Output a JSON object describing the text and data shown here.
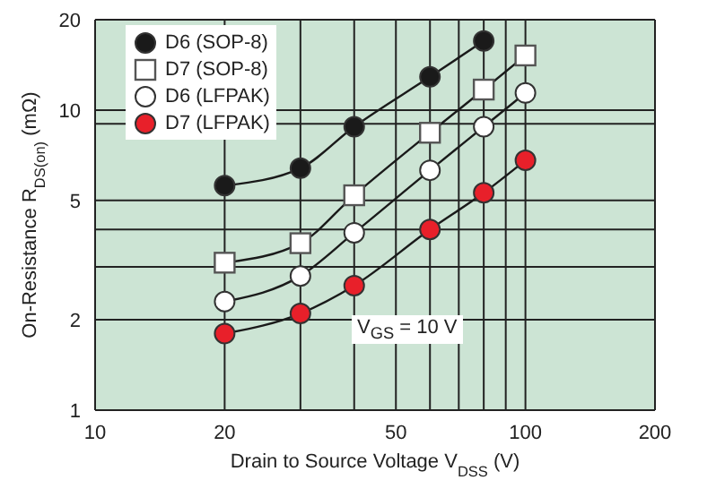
{
  "chart_data": {
    "type": "line",
    "xlabel": "Drain to Source Voltage  V$_{DSS}$  (V)",
    "ylabel": "On-Resistance  R$_{DS(on)}$  (mΩ)",
    "log": "xy",
    "grid": true,
    "legend": "top left",
    "xlim": [
      10,
      200
    ],
    "xticks": [
      10,
      20,
      {
        "value": 30,
        "label": null
      },
      {
        "value": 40,
        "label": null
      },
      50,
      {
        "value": 60,
        "label": null
      },
      {
        "value": 70,
        "label": null
      },
      {
        "value": 80,
        "label": null
      },
      {
        "value": 90,
        "label": null
      },
      100,
      200
    ],
    "ylim": [
      1,
      20
    ],
    "yticks": [
      1,
      2,
      {
        "value": 3,
        "label": null
      },
      {
        "value": 4,
        "label": null
      },
      5,
      {
        "value": 9,
        "label": null
      },
      10,
      20
    ],
    "annotations": [
      "V$_{GS}$ = 10 V"
    ],
    "series": [
      {
        "name": "D6 (SOP-8)",
        "color": "#1a1a1a",
        "marker": "circle",
        "x": [
          20,
          30,
          40,
          60,
          80
        ],
        "values": [
          5.6,
          6.4,
          8.8,
          12.9,
          17.0
        ]
      },
      {
        "name": "D7 (SOP-8)",
        "color": "#ffffff",
        "marker": "square",
        "x": [
          20,
          30,
          40,
          60,
          80,
          100
        ],
        "values": [
          3.1,
          3.6,
          5.2,
          8.4,
          11.7,
          15.2
        ]
      },
      {
        "name": "D6 (LFPAK)",
        "color": "#ffffff",
        "marker": "circle",
        "x": [
          20,
          30,
          40,
          60,
          80,
          100
        ],
        "values": [
          2.3,
          2.8,
          3.9,
          6.3,
          8.8,
          11.4
        ]
      },
      {
        "name": "D7 (LFPAK)",
        "color": "#e8202a",
        "marker": "circle",
        "x": [
          20,
          30,
          40,
          60,
          80,
          100
        ],
        "values": [
          1.8,
          2.1,
          2.6,
          4.0,
          5.3,
          6.8
        ]
      }
    ]
  }
}
